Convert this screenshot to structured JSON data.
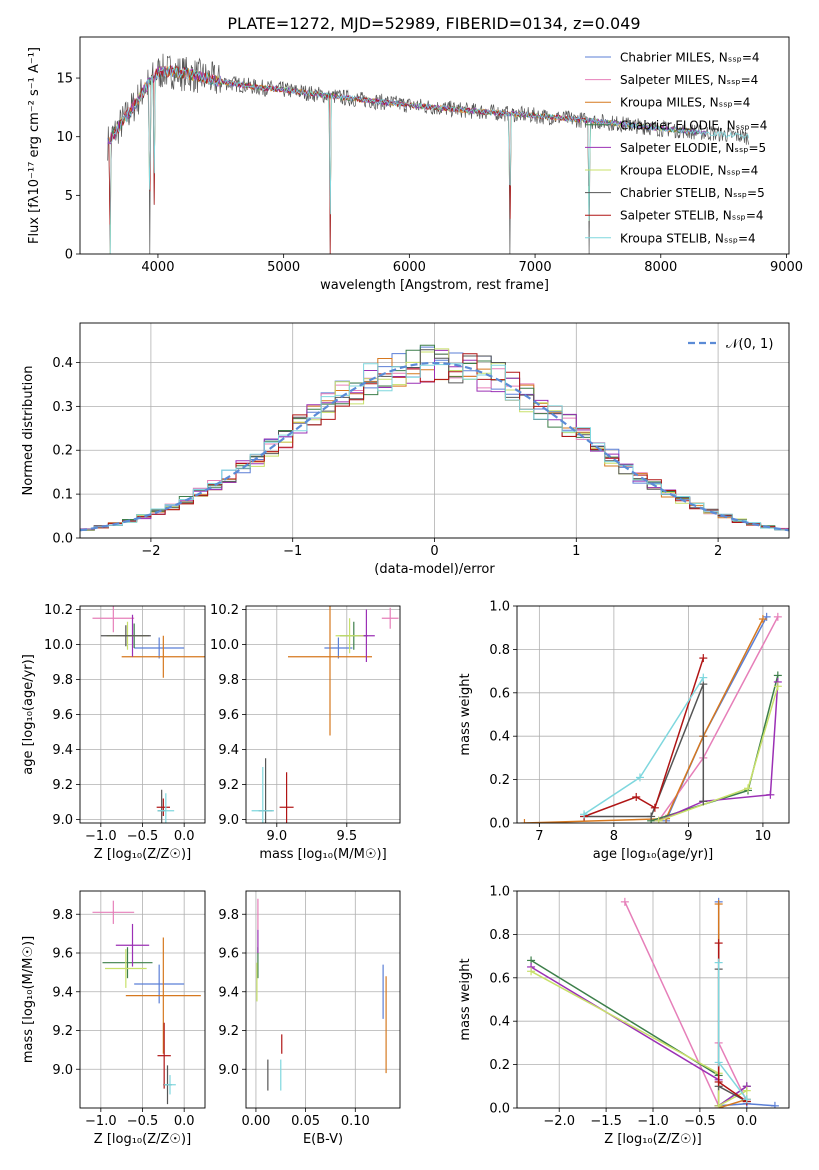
{
  "figure": {
    "title": "PLATE=1272, MJD=52989, FIBERID=0134, z=0.049"
  },
  "colors": {
    "Chabrier MILES": "#5b7fd6",
    "Salpeter MILES": "#e67fb9",
    "Kroupa MILES": "#d6781f",
    "Chabrier ELODIE": "#3d7f4a",
    "Salpeter ELODIE": "#9b30b5",
    "Kroupa ELODIE": "#c8e06a",
    "Chabrier STELIB": "#555555",
    "Salpeter STELIB": "#b01515",
    "Kroupa STELIB": "#7fd7de",
    "normal": "#5b8bd6"
  },
  "chart_data": [
    {
      "type": "line",
      "panel": "spectrum",
      "xlabel": "wavelength [Angstrom, rest frame]",
      "ylabel": "Flux [fλ10⁻¹⁷ erg cm⁻² s⁻¹ A⁻¹]",
      "xlim": [
        3380,
        9020
      ],
      "ylim": [
        0,
        18.5
      ],
      "xticks": [
        4000,
        5000,
        6000,
        7000,
        8000,
        9000
      ],
      "yticks": [
        0,
        5,
        10,
        15
      ],
      "legend_position": "top-right",
      "legend": [
        "Chabrier MILES, Nₛₛₚ=4",
        "Salpeter MILES, Nₛₛₚ=4",
        "Kroupa MILES, Nₛₛₚ=4",
        "Chabrier ELODIE, Nₛₛₚ=4",
        "Salpeter ELODIE, Nₛₛₚ=5",
        "Kroupa ELODIE, Nₛₛₚ=4",
        "Chabrier STELIB, Nₛₛₚ=5",
        "Salpeter STELIB, Nₛₛₚ=4",
        "Kroupa STELIB, Nₛₛₚ=4"
      ],
      "continuum": {
        "x": [
          3600,
          3700,
          3800,
          3900,
          4000,
          4100,
          4300,
          4500,
          4800,
          5000,
          5500,
          6000,
          6500,
          7000,
          7500,
          8000,
          8500,
          8700
        ],
        "y": [
          9.5,
          11.0,
          12.5,
          14.2,
          15.5,
          15.6,
          15.2,
          14.7,
          14.2,
          14.0,
          13.3,
          12.7,
          12.2,
          11.8,
          11.3,
          10.7,
          10.2,
          10.0
        ]
      },
      "spectrum_dips": [
        {
          "x": 3620,
          "y": 0
        },
        {
          "x": 3935,
          "y": 0
        },
        {
          "x": 3970,
          "y": 4.2
        },
        {
          "x": 5370,
          "y": 0
        },
        {
          "x": 6800,
          "y": 0
        },
        {
          "x": 7430,
          "y": 0
        }
      ],
      "grid": false
    },
    {
      "type": "histogram",
      "panel": "residuals",
      "xlabel": "(data-model)/error",
      "ylabel": "Normed distribution",
      "xlim": [
        -2.5,
        2.5
      ],
      "ylim": [
        0,
        0.49
      ],
      "xticks": [
        -2,
        -1,
        0,
        1,
        2
      ],
      "yticks": [
        0.0,
        0.1,
        0.2,
        0.3,
        0.4
      ],
      "legend": [
        "𝒩(0, 1)"
      ],
      "legend_position": "top-right",
      "bin_width": 0.1,
      "grid": true
    },
    {
      "type": "scatter",
      "panel": "age-vs-Z",
      "xlabel": "Z [log₁₀(Z/Z☉)]",
      "ylabel": "age  [log₁₀(age/yr)]",
      "xlim": [
        -1.25,
        0.25
      ],
      "ylim": [
        8.98,
        10.22
      ],
      "xticks": [
        -1.0,
        -0.5,
        0.0
      ],
      "yticks": [
        9.0,
        9.2,
        9.4,
        9.6,
        9.8,
        10.0,
        10.2
      ],
      "points": [
        {
          "series": "Chabrier MILES",
          "x": -0.3,
          "y": 9.98,
          "xerr": 0.3,
          "yerr": 0.06
        },
        {
          "series": "Salpeter MILES",
          "x": -0.85,
          "y": 10.15,
          "xerr": 0.25,
          "yerr": 0.08
        },
        {
          "series": "Kroupa MILES",
          "x": -0.25,
          "y": 9.93,
          "xerr": 0.5,
          "yerr": 0.12
        },
        {
          "series": "Chabrier ELODIE",
          "x": -0.6,
          "y": 10.05,
          "xerr": 0.1,
          "yerr": 0.07
        },
        {
          "series": "Salpeter ELODIE",
          "x": -0.62,
          "y": 10.05,
          "xerr": 0.2,
          "yerr": 0.12
        },
        {
          "series": "Kroupa ELODIE",
          "x": -0.68,
          "y": 10.05,
          "xerr": 0.25,
          "yerr": 0.08
        },
        {
          "series": "Chabrier STELIB",
          "x": -0.27,
          "y": 9.05,
          "xerr": 0.05,
          "yerr": 0.12
        },
        {
          "series": "Salpeter STELIB",
          "x": -0.25,
          "y": 9.07,
          "xerr": 0.08,
          "yerr": 0.05
        },
        {
          "series": "Kroupa STELIB",
          "x": -0.22,
          "y": 9.05,
          "xerr": 0.1,
          "yerr": 0.1
        },
        {
          "series": "Chabrier STELIB",
          "x": -0.7,
          "y": 10.05,
          "xerr": 0.3,
          "yerr": 0.06
        }
      ],
      "grid": true
    },
    {
      "type": "scatter",
      "panel": "age-vs-mass",
      "xlabel": "mass [log₁₀(M/M☉)]",
      "ylabel": "",
      "xlim": [
        8.78,
        9.88
      ],
      "ylim": [
        8.98,
        10.22
      ],
      "xticks": [
        9.0,
        9.5
      ],
      "yticks": [
        9.0,
        9.2,
        9.4,
        9.6,
        9.8,
        10.0,
        10.2
      ],
      "points": [
        {
          "series": "Chabrier MILES",
          "x": 9.44,
          "y": 9.98,
          "xerr": 0.1,
          "yerr": 0.06
        },
        {
          "series": "Salpeter MILES",
          "x": 9.81,
          "y": 10.15,
          "xerr": 0.06,
          "yerr": 0.06
        },
        {
          "series": "Kroupa MILES",
          "x": 9.38,
          "y": 9.93,
          "xerr": 0.3,
          "yerr": 0.45
        },
        {
          "series": "Chabrier ELODIE",
          "x": 9.55,
          "y": 10.05,
          "xerr": 0.1,
          "yerr": 0.08
        },
        {
          "series": "Salpeter ELODIE",
          "x": 9.64,
          "y": 10.05,
          "xerr": 0.06,
          "yerr": 0.15
        },
        {
          "series": "Kroupa ELODIE",
          "x": 9.52,
          "y": 10.05,
          "xerr": 0.1,
          "yerr": 0.1
        },
        {
          "series": "Chabrier STELIB",
          "x": 8.92,
          "y": 9.05,
          "xerr": 0.05,
          "yerr": 0.3
        },
        {
          "series": "Salpeter STELIB",
          "x": 9.07,
          "y": 9.07,
          "xerr": 0.05,
          "yerr": 0.2
        },
        {
          "series": "Kroupa STELIB",
          "x": 8.9,
          "y": 9.05,
          "xerr": 0.08,
          "yerr": 0.25
        }
      ],
      "grid": true
    },
    {
      "type": "line",
      "panel": "mass-weight-vs-age",
      "xlabel": "age  [log₁₀(age/yr)]",
      "ylabel": "mass weight",
      "xlim": [
        6.7,
        10.35
      ],
      "ylim": [
        0,
        1.0
      ],
      "xticks": [
        7,
        8,
        9,
        10
      ],
      "yticks": [
        0.0,
        0.2,
        0.4,
        0.6,
        0.8,
        1.0
      ],
      "series": [
        {
          "name": "Chabrier MILES",
          "x": [
            8.7,
            9.2,
            10.05
          ],
          "y": [
            0.01,
            0.4,
            0.95
          ]
        },
        {
          "name": "Salpeter MILES",
          "x": [
            8.6,
            9.2,
            10.2
          ],
          "y": [
            0.01,
            0.3,
            0.95
          ]
        },
        {
          "name": "Kroupa MILES",
          "x": [
            6.8,
            8.7,
            9.2,
            10.0
          ],
          "y": [
            0.0,
            0.02,
            0.4,
            0.94
          ]
        },
        {
          "name": "Chabrier ELODIE",
          "x": [
            8.5,
            9.8,
            10.2
          ],
          "y": [
            0.01,
            0.15,
            0.68
          ]
        },
        {
          "name": "Salpeter ELODIE",
          "x": [
            8.6,
            9.2,
            10.1,
            10.2
          ],
          "y": [
            0.01,
            0.1,
            0.13,
            0.65
          ]
        },
        {
          "name": "Kroupa ELODIE",
          "x": [
            8.6,
            9.8,
            10.2
          ],
          "y": [
            0.01,
            0.16,
            0.63
          ]
        },
        {
          "name": "Chabrier STELIB",
          "x": [
            7.6,
            8.5,
            9.2,
            9.2
          ],
          "y": [
            0.03,
            0.03,
            0.64,
            0.1
          ]
        },
        {
          "name": "Salpeter STELIB",
          "x": [
            7.6,
            8.3,
            8.55,
            9.2
          ],
          "y": [
            0.03,
            0.12,
            0.07,
            0.76
          ]
        },
        {
          "name": "Kroupa STELIB",
          "x": [
            7.6,
            8.35,
            9.2
          ],
          "y": [
            0.04,
            0.21,
            0.67
          ]
        }
      ],
      "grid": true
    },
    {
      "type": "scatter",
      "panel": "mass-vs-Z",
      "xlabel": "Z [log₁₀(Z/Z☉)]",
      "ylabel": "mass [log₁₀(M/M☉)]",
      "xlim": [
        -1.25,
        0.25
      ],
      "ylim": [
        8.8,
        9.92
      ],
      "xticks": [
        -1.0,
        -0.5,
        0.0
      ],
      "yticks": [
        9.0,
        9.2,
        9.4,
        9.6,
        9.8
      ],
      "points": [
        {
          "series": "Chabrier MILES",
          "x": -0.3,
          "y": 9.44,
          "xerr": 0.3,
          "yerr": 0.1
        },
        {
          "series": "Salpeter MILES",
          "x": -0.85,
          "y": 9.81,
          "xerr": 0.25,
          "yerr": 0.06
        },
        {
          "series": "Kroupa MILES",
          "x": -0.25,
          "y": 9.38,
          "xerr": 0.45,
          "yerr": 0.3
        },
        {
          "series": "Chabrier ELODIE",
          "x": -0.68,
          "y": 9.55,
          "xerr": 0.3,
          "yerr": 0.08
        },
        {
          "series": "Salpeter ELODIE",
          "x": -0.62,
          "y": 9.64,
          "xerr": 0.2,
          "yerr": 0.11
        },
        {
          "series": "Kroupa ELODIE",
          "x": -0.7,
          "y": 9.52,
          "xerr": 0.25,
          "yerr": 0.1
        },
        {
          "series": "Chabrier STELIB",
          "x": -0.2,
          "y": 8.92,
          "xerr": 0.05,
          "yerr": 0.1
        },
        {
          "series": "Salpeter STELIB",
          "x": -0.24,
          "y": 9.07,
          "xerr": 0.08,
          "yerr": 0.17
        },
        {
          "series": "Kroupa STELIB",
          "x": -0.17,
          "y": 8.92,
          "xerr": 0.07,
          "yerr": 0.05
        }
      ],
      "grid": true
    },
    {
      "type": "scatter",
      "panel": "mass-vs-EBV",
      "xlabel": "E(B-V)",
      "ylabel": "",
      "xlim": [
        -0.01,
        0.145
      ],
      "ylim": [
        8.8,
        9.92
      ],
      "xticks": [
        0.0,
        0.05,
        0.1
      ],
      "yticks": [
        9.0,
        9.2,
        9.4,
        9.6,
        9.8
      ],
      "points": [
        {
          "series": "Chabrier MILES",
          "x": 0.128,
          "y": 9.4,
          "xerr": 0,
          "yerr": 0.14
        },
        {
          "series": "Salpeter MILES",
          "x": 0.002,
          "y": 9.8,
          "xerr": 0,
          "yerr": 0.08
        },
        {
          "series": "Kroupa MILES",
          "x": 0.131,
          "y": 9.23,
          "xerr": 0,
          "yerr": 0.25
        },
        {
          "series": "Chabrier ELODIE",
          "x": 0.002,
          "y": 9.55,
          "xerr": 0,
          "yerr": 0.08
        },
        {
          "series": "Salpeter ELODIE",
          "x": 0.002,
          "y": 9.66,
          "xerr": 0,
          "yerr": 0.06
        },
        {
          "series": "Kroupa ELODIE",
          "x": 0.001,
          "y": 9.45,
          "xerr": 0,
          "yerr": 0.1
        },
        {
          "series": "Chabrier STELIB",
          "x": 0.012,
          "y": 8.97,
          "xerr": 0,
          "yerr": 0.08
        },
        {
          "series": "Salpeter STELIB",
          "x": 0.026,
          "y": 9.13,
          "xerr": 0,
          "yerr": 0.05
        },
        {
          "series": "Kroupa STELIB",
          "x": 0.025,
          "y": 8.97,
          "xerr": 0,
          "yerr": 0.08
        }
      ],
      "grid": true
    },
    {
      "type": "line",
      "panel": "mass-weight-vs-Z",
      "xlabel": "Z [log₁₀(Z/Z☉)]",
      "ylabel": "mass weight",
      "xlim": [
        -2.45,
        0.45
      ],
      "ylim": [
        0,
        1.0
      ],
      "xticks": [
        -2.0,
        -1.5,
        -1.0,
        -0.5,
        0.0
      ],
      "yticks": [
        0.0,
        0.2,
        0.4,
        0.6,
        0.8,
        1.0
      ],
      "series": [
        {
          "name": "Chabrier MILES",
          "x": [
            -0.3,
            -0.3,
            0.0,
            0.3
          ],
          "y": [
            0.95,
            0.01,
            0.02,
            0.01
          ]
        },
        {
          "name": "Salpeter MILES",
          "x": [
            -1.3,
            -0.3,
            -0.3,
            0.0
          ],
          "y": [
            0.95,
            0.01,
            0.3,
            0.03
          ]
        },
        {
          "name": "Kroupa MILES",
          "x": [
            -0.3,
            -0.3,
            0.0
          ],
          "y": [
            0.94,
            0.0,
            0.04
          ]
        },
        {
          "name": "Chabrier ELODIE",
          "x": [
            -2.3,
            -0.3,
            -0.3,
            0.0
          ],
          "y": [
            0.68,
            0.15,
            0.01,
            0.1
          ]
        },
        {
          "name": "Salpeter ELODIE",
          "x": [
            -2.3,
            -0.3,
            -0.3,
            0.0
          ],
          "y": [
            0.65,
            0.13,
            0.01,
            0.1
          ]
        },
        {
          "name": "Kroupa ELODIE",
          "x": [
            -2.3,
            -0.3,
            -0.3,
            0.0
          ],
          "y": [
            0.63,
            0.16,
            0.01,
            0.08
          ]
        },
        {
          "name": "Chabrier STELIB",
          "x": [
            -0.3,
            -0.3,
            0.0
          ],
          "y": [
            0.64,
            0.1,
            0.03
          ]
        },
        {
          "name": "Salpeter STELIB",
          "x": [
            -0.3,
            -0.3,
            0.0
          ],
          "y": [
            0.76,
            0.12,
            0.03
          ]
        },
        {
          "name": "Kroupa STELIB",
          "x": [
            -0.3,
            -0.3,
            0.0
          ],
          "y": [
            0.67,
            0.21,
            0.04
          ]
        }
      ],
      "grid": true
    }
  ]
}
